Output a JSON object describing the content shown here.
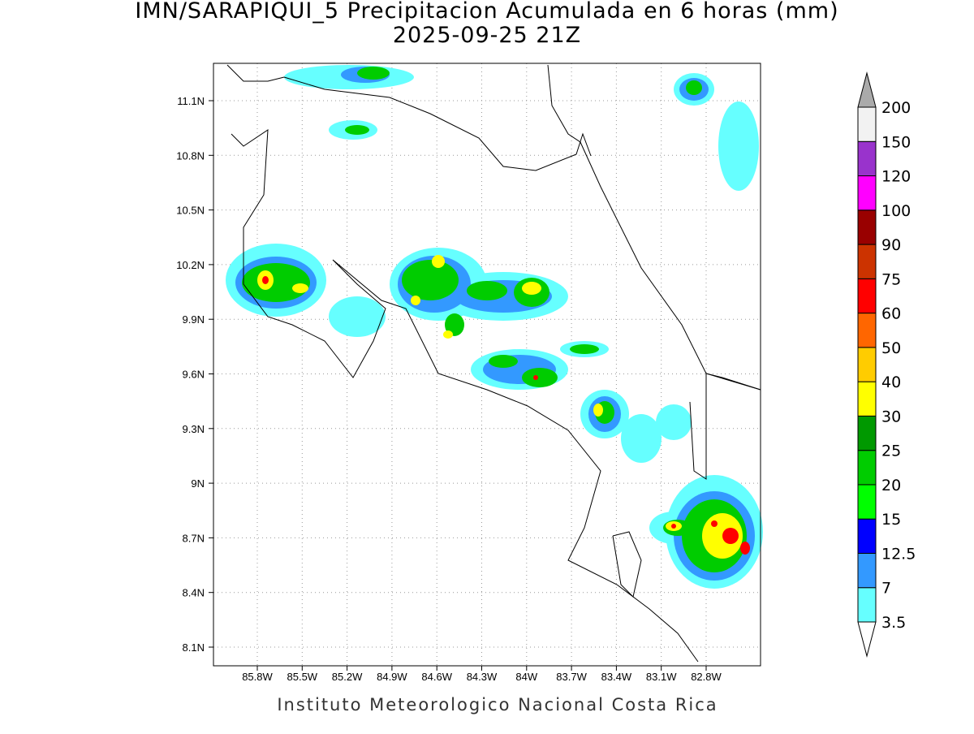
{
  "header": {
    "title": "IMN/SARAPIQUI_5 Precipitacion Acumulada en 6 horas (mm)",
    "subtitle": "2025-09-25 21Z"
  },
  "map": {
    "lon_labels": [
      "85.8W",
      "85.5W",
      "85.2W",
      "84.9W",
      "84.6W",
      "84.3W",
      "84W",
      "83.7W",
      "83.4W",
      "83.1W",
      "82.8W"
    ],
    "lat_labels": [
      "11.1N",
      "10.8N",
      "10.5N",
      "10.2N",
      "9.9N",
      "9.6N",
      "9.3N",
      "9N",
      "8.7N",
      "8.4N",
      "8.1N"
    ]
  },
  "colorbar": {
    "levels": [
      3.5,
      7,
      12.5,
      15,
      20,
      25,
      30,
      40,
      50,
      60,
      75,
      90,
      100,
      120,
      150,
      200
    ],
    "colors": [
      "#ffffff",
      "#66ffff",
      "#3399ff",
      "#0000ff",
      "#00ff00",
      "#00cc00",
      "#009900",
      "#ffff00",
      "#ffcc00",
      "#ff6600",
      "#ff0000",
      "#cc3300",
      "#990000",
      "#ff00ff",
      "#9933cc",
      "#f2f2f2",
      "#aaaaaa"
    ]
  },
  "footer": "Instituto Meteorologico Nacional Costa Rica"
}
